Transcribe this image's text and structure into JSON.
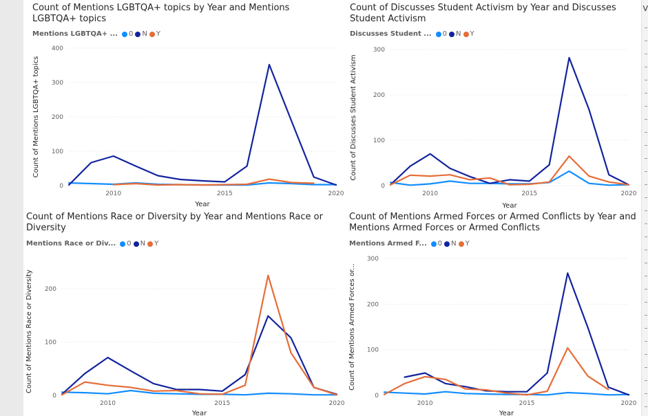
{
  "colors": {
    "0": "#118dff",
    "N": "#12239e",
    "Y": "#e66c37"
  },
  "right_strip": {
    "label": "V"
  },
  "chart_data": [
    {
      "type": "line",
      "title": "Count of Mentions LGBTQA+ topics by Year and Mentions LGBTQA+ topics",
      "legend_title": "Mentions LGBTQA+ ...",
      "xlabel": "Year",
      "ylabel": "Count of Mentions LGBTQA+ topics",
      "xlim": [
        2008,
        2020
      ],
      "ylim": [
        0,
        400
      ],
      "xticks": [
        2010,
        2015,
        2020
      ],
      "yticks": [
        0,
        100,
        200,
        300,
        400
      ],
      "grid": true,
      "legend_position": "top-left",
      "series": [
        {
          "name": "0",
          "x": [
            2008,
            2009,
            2010,
            2011,
            2012,
            2013,
            2014,
            2015,
            2016,
            2017,
            2018,
            2019,
            2020
          ],
          "y": [
            8,
            6,
            4,
            8,
            4,
            3,
            2,
            2,
            2,
            8,
            6,
            3,
            3
          ]
        },
        {
          "name": "N",
          "x": [
            2008,
            2009,
            2010,
            2011,
            2012,
            2013,
            2014,
            2015,
            2016,
            2017,
            2018,
            2019,
            2020
          ],
          "y": [
            2,
            67,
            86,
            57,
            29,
            18,
            14,
            11,
            57,
            352,
            188,
            25,
            2
          ]
        },
        {
          "name": "Y",
          "x": [
            2010,
            2011,
            2012,
            2013,
            2014,
            2015,
            2016,
            2017,
            2018,
            2019
          ],
          "y": [
            3,
            6,
            2,
            3,
            2,
            3,
            4,
            19,
            9,
            7
          ]
        }
      ]
    },
    {
      "type": "line",
      "title": "Count of Discusses Student Activism by Year and Discusses Student Activism",
      "legend_title": "Discusses Student ...",
      "xlabel": "Year",
      "ylabel": "Count of Discusses Student Activism",
      "xlim": [
        2008,
        2020
      ],
      "ylim": [
        0,
        300
      ],
      "xticks": [
        2010,
        2015,
        2020
      ],
      "yticks": [
        0,
        100,
        200,
        300
      ],
      "grid": true,
      "legend_position": "top-left",
      "series": [
        {
          "name": "0",
          "x": [
            2008,
            2009,
            2010,
            2011,
            2012,
            2013,
            2014,
            2015,
            2016,
            2017,
            2018,
            2019,
            2020
          ],
          "y": [
            7,
            1,
            4,
            10,
            5,
            5,
            4,
            4,
            7,
            32,
            5,
            1,
            2
          ]
        },
        {
          "name": "N",
          "x": [
            2008,
            2009,
            2010,
            2011,
            2012,
            2013,
            2014,
            2015,
            2016,
            2017,
            2018,
            2019,
            2020
          ],
          "y": [
            2,
            43,
            70,
            38,
            20,
            5,
            13,
            10,
            46,
            282,
            168,
            24,
            2
          ]
        },
        {
          "name": "Y",
          "x": [
            2008,
            2009,
            2010,
            2011,
            2012,
            2013,
            2014,
            2015,
            2016,
            2017,
            2018,
            2019,
            2020
          ],
          "y": [
            2,
            23,
            21,
            24,
            13,
            17,
            2,
            3,
            8,
            65,
            21,
            8,
            2
          ]
        }
      ]
    },
    {
      "type": "line",
      "title": "Count of Mentions Race or Diversity by Year and Mentions Race or Diversity",
      "legend_title": "Mentions Race or Div...",
      "xlabel": "Year",
      "ylabel": "Count of Mentions Race or Diversity",
      "xlim": [
        2008,
        2020
      ],
      "ylim": [
        0,
        240
      ],
      "xticks": [
        2010,
        2015,
        2020
      ],
      "yticks": [
        0,
        100,
        200
      ],
      "grid": true,
      "legend_position": "top-left",
      "series": [
        {
          "name": "0",
          "x": [
            2008,
            2009,
            2010,
            2011,
            2012,
            2013,
            2014,
            2015,
            2016,
            2017,
            2018,
            2019,
            2020
          ],
          "y": [
            6,
            5,
            3,
            9,
            4,
            3,
            2,
            2,
            1,
            4,
            3,
            1,
            1
          ]
        },
        {
          "name": "N",
          "x": [
            2008,
            2009,
            2010,
            2011,
            2012,
            2013,
            2014,
            2015,
            2016,
            2017,
            2018,
            2019,
            2020
          ],
          "y": [
            2,
            41,
            71,
            46,
            22,
            11,
            11,
            8,
            39,
            149,
            108,
            15,
            2
          ]
        },
        {
          "name": "Y",
          "x": [
            2008,
            2009,
            2010,
            2011,
            2012,
            2013,
            2014,
            2015,
            2016,
            2017,
            2018,
            2019,
            2020
          ],
          "y": [
            1,
            25,
            19,
            15,
            8,
            9,
            3,
            2,
            19,
            225,
            80,
            15,
            1
          ]
        }
      ]
    },
    {
      "type": "line",
      "title": "Count of Mentions Armed Forces or Armed Conflicts by Year and Mentions Armed Forces or Armed Conflicts",
      "legend_title": "Mentions Armed F...",
      "xlabel": "Year",
      "ylabel": "Count of Mentions Armed Forces or...",
      "xlim": [
        2008,
        2020
      ],
      "ylim": [
        0,
        300
      ],
      "xticks": [
        2010,
        2015,
        2020
      ],
      "yticks": [
        0,
        100,
        200,
        300
      ],
      "grid": true,
      "legend_position": "top-left",
      "series": [
        {
          "name": "0",
          "x": [
            2008,
            2009,
            2010,
            2011,
            2012,
            2013,
            2014,
            2015,
            2016,
            2017,
            2018,
            2019,
            2020
          ],
          "y": [
            7,
            5,
            3,
            8,
            4,
            3,
            2,
            2,
            1,
            6,
            4,
            1,
            2
          ]
        },
        {
          "name": "N",
          "x": [
            2009,
            2010,
            2011,
            2012,
            2013,
            2014,
            2015,
            2016,
            2017,
            2018,
            2019,
            2020
          ],
          "y": [
            40,
            49,
            26,
            19,
            10,
            8,
            8,
            49,
            268,
            148,
            18,
            1
          ]
        },
        {
          "name": "Y",
          "x": [
            2008,
            2009,
            2010,
            2011,
            2012,
            2013,
            2014,
            2015,
            2016,
            2017,
            2018,
            2019
          ],
          "y": [
            2,
            26,
            41,
            35,
            14,
            12,
            5,
            1,
            9,
            104,
            42,
            13
          ]
        }
      ]
    }
  ]
}
